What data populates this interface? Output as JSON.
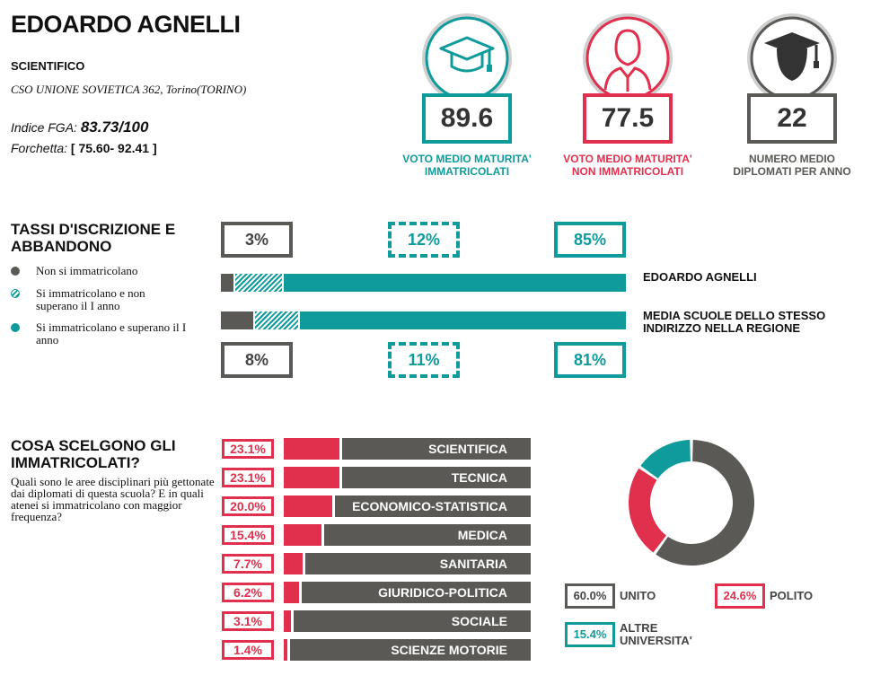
{
  "header": {
    "school_name": "EDOARDO AGNELLI",
    "type": "SCIENTIFICO",
    "address": "CSO UNIONE SOVIETICA 362, Torino(TORINO)",
    "fga_label": "Indice FGA:",
    "fga_value": "83.73/100",
    "fork_label": "Forchetta:",
    "fork_value": "[ 75.60- 92.41 ]"
  },
  "kpis": [
    {
      "value": "89.6",
      "caption_1": "VOTO MEDIO MATURITA'",
      "caption_2": "IMMATRICOLATI",
      "color": "#0f9b9b",
      "icon": "graduation-cap-icon"
    },
    {
      "value": "77.5",
      "caption_1": "VOTO MEDIO MATURITA'",
      "caption_2": "NON IMMATRICOLATI",
      "color": "#e0304e",
      "icon": "person-icon"
    },
    {
      "value": "22",
      "caption_1": "NUMERO MEDIO",
      "caption_2": "DIPLOMATI PER ANNO",
      "color": "#5a5955",
      "icon": "graduate-icon"
    }
  ],
  "enrollment": {
    "title_1": "TASSI D'ISCRIZIONE E",
    "title_2": "ABBANDONO",
    "legend": [
      {
        "label": "Non si immatricolano",
        "color": "#5a5955"
      },
      {
        "label": "Si immatricolano e non superano il I anno",
        "color": "#0f9b9b",
        "pattern": "hatched"
      },
      {
        "label": "Si immatricolano e superano il I anno",
        "color": "#0f9b9b"
      }
    ],
    "school": {
      "name": "EDOARDO AGNELLI",
      "labels": [
        "3%",
        "12%",
        "85%"
      ]
    },
    "region": {
      "name": "MEDIA SCUOLE DELLO STESSO INDIRIZZO NELLA REGIONE",
      "labels": [
        "8%",
        "11%",
        "81%"
      ]
    }
  },
  "choices": {
    "title_1": "COSA SCELGONO GLI",
    "title_2": "IMMATRICOLATI?",
    "description": "Quali sono le aree disciplinari più gettonate dai diplomati di questa scuola? E in quali atenei si immatricolano con maggior frequenza?",
    "areas": [
      {
        "label": "SCIENTIFICA",
        "pct": "23.1%"
      },
      {
        "label": "TECNICA",
        "pct": "23.1%"
      },
      {
        "label": "ECONOMICO-STATISTICA",
        "pct": "20.0%"
      },
      {
        "label": "MEDICA",
        "pct": "15.4%"
      },
      {
        "label": "SANITARIA",
        "pct": "7.7%"
      },
      {
        "label": "GIURIDICO-POLITICA",
        "pct": "6.2%"
      },
      {
        "label": "SOCIALE",
        "pct": "3.1%"
      },
      {
        "label": "SCIENZE MOTORIE",
        "pct": "1.4%"
      }
    ],
    "universities": [
      {
        "label": "UNITO",
        "pct": "60.0%",
        "color": "#5a5955"
      },
      {
        "label": "POLITO",
        "pct": "24.6%",
        "color": "#e0304e"
      },
      {
        "label": "ALTRE UNIVERSITA'",
        "pct": "15.4%",
        "color": "#0f9b9b"
      }
    ]
  },
  "chart_data": [
    {
      "type": "bar",
      "orientation": "horizontal",
      "stacked": true,
      "categories": [
        "EDOARDO AGNELLI",
        "MEDIA SCUOLE DELLO STESSO INDIRIZZO NELLA REGIONE"
      ],
      "series": [
        {
          "name": "Non si immatricolano",
          "values": [
            3,
            8
          ],
          "color": "#5a5955"
        },
        {
          "name": "Si immatricolano e non superano il I anno",
          "values": [
            12,
            11
          ],
          "color": "#0f9b9b"
        },
        {
          "name": "Si immatricolano e superano il I anno",
          "values": [
            85,
            81
          ],
          "color": "#0f9b9b"
        }
      ],
      "unit": "%"
    },
    {
      "type": "bar",
      "orientation": "horizontal",
      "categories": [
        "SCIENTIFICA",
        "TECNICA",
        "ECONOMICO-STATISTICA",
        "MEDICA",
        "SANITARIA",
        "GIURIDICO-POLITICA",
        "SOCIALE",
        "SCIENZE MOTORIE"
      ],
      "values": [
        23.1,
        23.1,
        20.0,
        15.4,
        7.7,
        6.2,
        3.1,
        1.4
      ],
      "unit": "%",
      "color": "#e0304e"
    },
    {
      "type": "pie",
      "donut": true,
      "labels": [
        "UNITO",
        "POLITO",
        "ALTRE UNIVERSITA'"
      ],
      "values": [
        60.0,
        24.6,
        15.4
      ],
      "colors": [
        "#5a5955",
        "#e0304e",
        "#0f9b9b"
      ]
    }
  ]
}
